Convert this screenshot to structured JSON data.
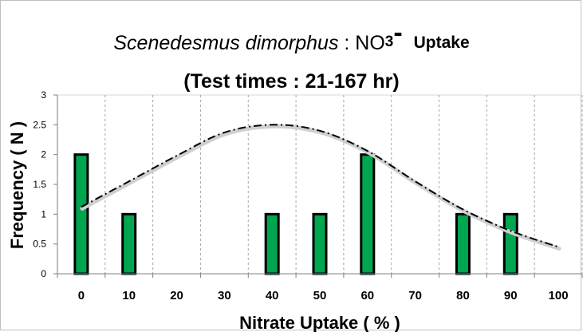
{
  "chart_data": {
    "type": "bar",
    "title_parts": {
      "species": "Scenedesmus dimorphus",
      "sep": " : NO",
      "sub": "3",
      "dash": "-",
      "uptake": "Uptake"
    },
    "subtitle": "(Test times : 21-167 hr)",
    "xlabel": "Nitrate Uptake ( % )",
    "ylabel": "Frequency ( N )",
    "categories": [
      "0",
      "10",
      "20",
      "30",
      "40",
      "50",
      "60",
      "70",
      "80",
      "90",
      "100"
    ],
    "values": [
      2,
      1,
      0,
      0,
      1,
      1,
      2,
      0,
      1,
      1,
      0
    ],
    "ylim": [
      0,
      3
    ],
    "yticks": [
      "0",
      "0.5",
      "1",
      "1.5",
      "2",
      "2.5",
      "3"
    ],
    "grid": "vertical dashed",
    "bar_color": "#00a550",
    "fit_curve": {
      "style": "dash-dot",
      "x": [
        0,
        10,
        20,
        30,
        40,
        50,
        60,
        70,
        80,
        90,
        100
      ],
      "y": [
        1.12,
        1.55,
        1.98,
        2.37,
        2.5,
        2.4,
        2.06,
        1.55,
        1.08,
        0.72,
        0.45
      ]
    }
  }
}
